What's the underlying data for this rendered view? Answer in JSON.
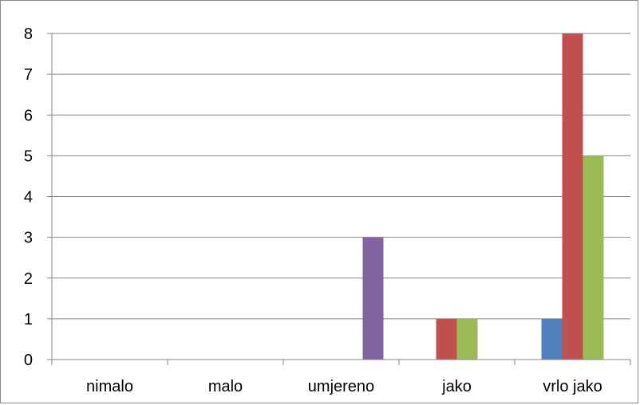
{
  "chart_data": {
    "type": "bar",
    "categories": [
      "nimalo",
      "malo",
      "umjereno",
      "jako",
      "vrlo jako"
    ],
    "series": [
      {
        "color": "#4F81BD",
        "values": [
          0,
          0,
          0,
          0,
          1
        ]
      },
      {
        "color": "#C0504D",
        "values": [
          0,
          0,
          0,
          1,
          8
        ]
      },
      {
        "color": "#9BBB59",
        "values": [
          0,
          0,
          0,
          1,
          5
        ]
      },
      {
        "color": "#8064A2",
        "values": [
          0,
          0,
          3,
          0,
          0
        ]
      }
    ],
    "ylim": [
      0,
      8
    ],
    "yticks": [
      "0",
      "1",
      "2",
      "3",
      "4",
      "5",
      "6",
      "7",
      "8"
    ],
    "grid": true,
    "legend": "none",
    "gridline_color": "#868686",
    "axis_color": "#868686"
  }
}
